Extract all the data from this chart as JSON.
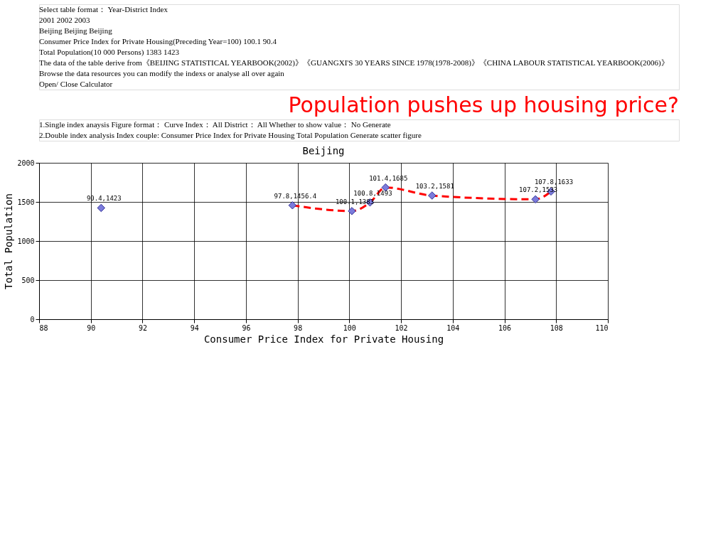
{
  "chart_data": {
    "type": "scatter",
    "title": "Population pushes up housing price?",
    "subtitle": "Beijing",
    "xlabel": "Consumer Price Index for Private Housing",
    "ylabel": "Total Population",
    "xlim": [
      88,
      110
    ],
    "xticks": [
      88,
      90,
      92,
      94,
      96,
      98,
      100,
      102,
      104,
      106,
      108,
      110
    ],
    "ylim": [
      0,
      2000
    ],
    "yticks": [
      0,
      500,
      1000,
      1500,
      2000
    ],
    "grid": true,
    "annotations": [
      "Select table format： Year-District Index",
      "2001    2002    2003",
      "Beijing    Beijing    Beijing",
      "Consumer Price Index for Private Housing(Preceding Year=100)    100.1    90.4",
      "Total Population(10 000 Persons)    1383    1423",
      "The data of the table derive from《BEIJING STATISTICAL YEARBOOK(2002)》《GUANGXI'S 30 YEARS SINCE 1978(1978-2008)》《CHINA LABOUR STATISTICAL YEARBOOK(2006)》",
      "Browse the data resources  you can  modify the indexs  or  analyse all over again",
      "Open/ Close Calculator",
      "1.Single index anaysis   Figure format： Curve   Index： All   District： All   Whether to show value： No   Generate",
      "2.Double index analysis   Index couple: Consumer Price Index for Private Housing Total Population   Generate  scatter figure"
    ],
    "series": [
      {
        "type": "scatter",
        "marker": "diamond",
        "color": "#7b7bdb",
        "x": [
          90.4,
          97.8,
          100.1,
          100.8,
          101.4,
          103.2,
          107.2,
          107.8
        ],
        "values": [
          1423,
          1456.4,
          1383,
          1493,
          1685,
          1581,
          1533,
          1633
        ],
        "value_labels": [
          "90.4,1423",
          "97.8,1456.4",
          "100.1,1383",
          "100.8,1493",
          "101.4,1685",
          "103.2,1581",
          "107.2,1533",
          "107.8,1633"
        ]
      },
      {
        "type": "line",
        "marker": "none",
        "line_style": "dashed",
        "color": "#ff0000",
        "x": [
          97.8,
          100.1,
          100.8,
          101.4,
          103.2,
          107.2,
          107.8
        ],
        "values": [
          1456.4,
          1383,
          1493,
          1685,
          1581,
          1533,
          1633
        ]
      }
    ]
  }
}
